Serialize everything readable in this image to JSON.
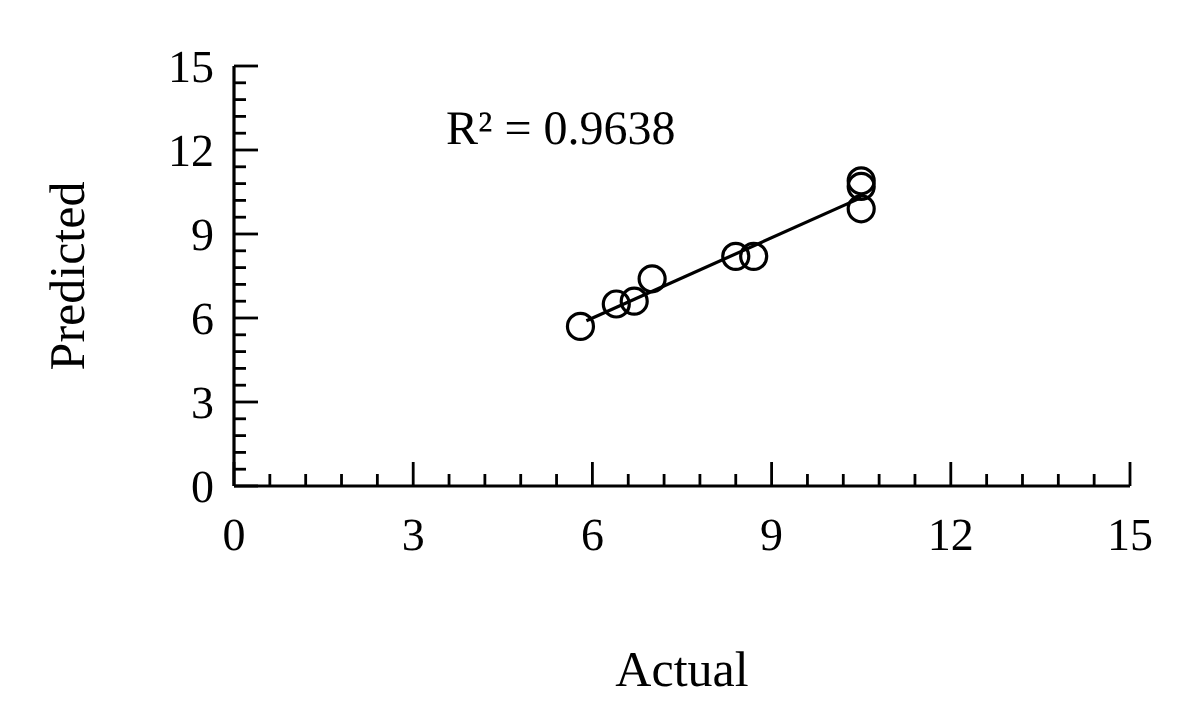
{
  "chart_data": {
    "type": "scatter",
    "xlabel": "Actual",
    "ylabel": "Predicted",
    "annotations": [
      "R² = 0.9638"
    ],
    "xlim": [
      0,
      15
    ],
    "ylim": [
      0,
      15
    ],
    "xticks": [
      0,
      {
        "value": 0.6,
        "label": null
      },
      {
        "value": 1.2,
        "label": null
      },
      {
        "value": 1.8,
        "label": null
      },
      {
        "value": 2.4,
        "label": null
      },
      3,
      {
        "value": 3.6,
        "label": null
      },
      {
        "value": 4.2,
        "label": null
      },
      {
        "value": 4.8,
        "label": null
      },
      {
        "value": 5.4,
        "label": null
      },
      6,
      {
        "value": 6.6,
        "label": null
      },
      {
        "value": 7.2,
        "label": null
      },
      {
        "value": 7.8,
        "label": null
      },
      {
        "value": 8.4,
        "label": null
      },
      9,
      {
        "value": 9.6,
        "label": null
      },
      {
        "value": 10.2,
        "label": null
      },
      {
        "value": 10.8,
        "label": null
      },
      {
        "value": 11.4,
        "label": null
      },
      12,
      {
        "value": 12.6,
        "label": null
      },
      {
        "value": 13.2,
        "label": null
      },
      {
        "value": 13.8,
        "label": null
      },
      {
        "value": 14.4,
        "label": null
      },
      15
    ],
    "yticks": [
      0,
      {
        "value": 0.6,
        "label": null
      },
      {
        "value": 1.2,
        "label": null
      },
      {
        "value": 1.8,
        "label": null
      },
      {
        "value": 2.4,
        "label": null
      },
      3,
      {
        "value": 3.6,
        "label": null
      },
      {
        "value": 4.2,
        "label": null
      },
      {
        "value": 4.8,
        "label": null
      },
      {
        "value": 5.4,
        "label": null
      },
      6,
      {
        "value": 6.6,
        "label": null
      },
      {
        "value": 7.2,
        "label": null
      },
      {
        "value": 7.8,
        "label": null
      },
      {
        "value": 8.4,
        "label": null
      },
      9,
      {
        "value": 9.6,
        "label": null
      },
      {
        "value": 10.2,
        "label": null
      },
      {
        "value": 10.8,
        "label": null
      },
      {
        "value": 11.4,
        "label": null
      },
      12,
      {
        "value": 12.6,
        "label": null
      },
      {
        "value": 13.2,
        "label": null
      },
      {
        "value": 13.8,
        "label": null
      },
      {
        "value": 14.4,
        "label": null
      },
      15
    ],
    "series": [
      {
        "marker": "circle",
        "color": "#000000",
        "x": [
          5.8,
          6.4,
          6.7,
          7.0,
          8.4,
          8.7,
          10.5,
          10.5,
          10.5
        ],
        "values": [
          5.7,
          6.5,
          6.6,
          7.4,
          8.2,
          8.2,
          9.9,
          10.7,
          10.9
        ]
      },
      {
        "type": "line",
        "color": "#000000",
        "x": [
          5.9,
          10.5
        ],
        "values": [
          5.9,
          10.3
        ]
      }
    ]
  }
}
